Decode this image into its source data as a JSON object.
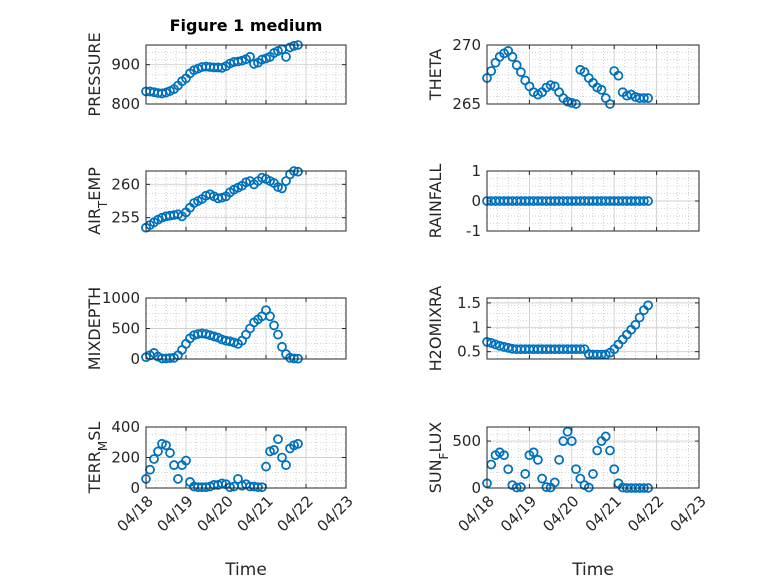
{
  "figure": {
    "title": "Figure 1 medium"
  },
  "colors": {
    "marker": "#0072BD",
    "axis": "#262626",
    "grid": "#b0b0b0",
    "background": "#ffffff"
  },
  "chart_data": [
    {
      "type": "scatter",
      "id": "pressure",
      "title": "Figure 1 medium",
      "ylabel": "PRESSURE",
      "ylabel_sub": [],
      "xlabel": "",
      "xlim_days": [
        0,
        5
      ],
      "ylim": [
        800,
        950
      ],
      "yticks": [
        800,
        900
      ],
      "xticks": [
        "04/18",
        "04/19",
        "04/20",
        "04/21",
        "04/22",
        "04/23"
      ],
      "show_xticklabels": false,
      "grid": true,
      "x": [
        0.0,
        0.1,
        0.2,
        0.3,
        0.4,
        0.5,
        0.6,
        0.7,
        0.8,
        0.9,
        1.0,
        1.1,
        1.2,
        1.3,
        1.4,
        1.5,
        1.6,
        1.7,
        1.8,
        1.9,
        2.0,
        2.1,
        2.2,
        2.3,
        2.4,
        2.5,
        2.6,
        2.7,
        2.8,
        2.9,
        3.0,
        3.1,
        3.2,
        3.3,
        3.4,
        3.5,
        3.6,
        3.7,
        3.8
      ],
      "y": [
        832,
        832,
        830,
        828,
        827,
        829,
        833,
        838,
        847,
        858,
        865,
        878,
        886,
        890,
        894,
        895,
        894,
        893,
        893,
        892,
        896,
        903,
        907,
        908,
        910,
        914,
        920,
        902,
        905,
        913,
        916,
        920,
        930,
        935,
        939,
        920,
        944,
        948,
        950
      ]
    },
    {
      "type": "scatter",
      "id": "theta",
      "ylabel": "THETA",
      "ylabel_sub": [],
      "xlabel": "",
      "xlim_days": [
        0,
        5
      ],
      "ylim": [
        265,
        270
      ],
      "yticks": [
        265,
        270
      ],
      "xticks": [
        "04/18",
        "04/19",
        "04/20",
        "04/21",
        "04/22",
        "04/23"
      ],
      "show_xticklabels": false,
      "grid": true,
      "x": [
        0.0,
        0.1,
        0.2,
        0.3,
        0.4,
        0.5,
        0.6,
        0.7,
        0.8,
        0.9,
        1.0,
        1.1,
        1.2,
        1.3,
        1.4,
        1.5,
        1.6,
        1.7,
        1.8,
        1.9,
        2.0,
        2.1,
        2.2,
        2.3,
        2.4,
        2.5,
        2.6,
        2.7,
        2.8,
        2.9,
        3.0,
        3.1,
        3.2,
        3.3,
        3.4,
        3.5,
        3.6,
        3.7,
        3.8
      ],
      "y": [
        267.2,
        267.8,
        268.5,
        269.0,
        269.3,
        269.5,
        269.0,
        268.3,
        267.7,
        267.0,
        266.5,
        266.0,
        265.8,
        266.0,
        266.4,
        266.6,
        266.5,
        266.0,
        265.5,
        265.2,
        265.1,
        265.0,
        267.9,
        267.7,
        267.2,
        266.8,
        266.4,
        266.2,
        265.5,
        265.0,
        267.8,
        267.4,
        266.0,
        265.7,
        265.8,
        265.6,
        265.5,
        265.5,
        265.5
      ]
    },
    {
      "type": "scatter",
      "id": "air_temp",
      "ylabel": "AIR",
      "ylabel_sub": [
        "T",
        "EMP"
      ],
      "xlabel": "",
      "xlim_days": [
        0,
        5
      ],
      "ylim": [
        253,
        262
      ],
      "yticks": [
        255,
        260
      ],
      "xticks": [
        "04/18",
        "04/19",
        "04/20",
        "04/21",
        "04/22",
        "04/23"
      ],
      "show_xticklabels": false,
      "grid": true,
      "x": [
        0.0,
        0.1,
        0.2,
        0.3,
        0.4,
        0.5,
        0.6,
        0.7,
        0.8,
        0.9,
        1.0,
        1.1,
        1.2,
        1.3,
        1.4,
        1.5,
        1.6,
        1.7,
        1.8,
        1.9,
        2.0,
        2.1,
        2.2,
        2.3,
        2.4,
        2.5,
        2.6,
        2.7,
        2.8,
        2.9,
        3.0,
        3.1,
        3.2,
        3.3,
        3.4,
        3.5,
        3.6,
        3.7,
        3.8
      ],
      "y": [
        253.5,
        253.9,
        254.3,
        254.7,
        255.0,
        255.2,
        255.3,
        255.4,
        255.5,
        255.2,
        255.8,
        256.5,
        257.2,
        257.5,
        257.8,
        258.3,
        258.5,
        258.2,
        257.9,
        258.0,
        258.2,
        258.8,
        259.2,
        259.5,
        259.8,
        260.3,
        260.5,
        260.0,
        260.5,
        261.0,
        260.8,
        260.5,
        260.2,
        259.6,
        259.4,
        260.5,
        261.5,
        262.0,
        261.9
      ]
    },
    {
      "type": "scatter",
      "id": "rainfall",
      "ylabel": "RAINFALL",
      "ylabel_sub": [],
      "xlabel": "",
      "xlim_days": [
        0,
        5
      ],
      "ylim": [
        -1,
        1
      ],
      "yticks": [
        -1,
        0,
        1
      ],
      "xticks": [
        "04/18",
        "04/19",
        "04/20",
        "04/21",
        "04/22",
        "04/23"
      ],
      "show_xticklabels": false,
      "grid": true,
      "x": [
        0.0,
        0.1,
        0.2,
        0.3,
        0.4,
        0.5,
        0.6,
        0.7,
        0.8,
        0.9,
        1.0,
        1.1,
        1.2,
        1.3,
        1.4,
        1.5,
        1.6,
        1.7,
        1.8,
        1.9,
        2.0,
        2.1,
        2.2,
        2.3,
        2.4,
        2.5,
        2.6,
        2.7,
        2.8,
        2.9,
        3.0,
        3.1,
        3.2,
        3.3,
        3.4,
        3.5,
        3.6,
        3.7,
        3.8
      ],
      "y": [
        0,
        0,
        0,
        0,
        0,
        0,
        0,
        0,
        0,
        0,
        0,
        0,
        0,
        0,
        0,
        0,
        0,
        0,
        0,
        0,
        0,
        0,
        0,
        0,
        0,
        0,
        0,
        0,
        0,
        0,
        0,
        0,
        0,
        0,
        0,
        0,
        0,
        0,
        0
      ]
    },
    {
      "type": "scatter",
      "id": "mixdepth",
      "ylabel": "MIXDEPTH",
      "ylabel_sub": [],
      "xlabel": "",
      "xlim_days": [
        0,
        5
      ],
      "ylim": [
        0,
        1000
      ],
      "yticks": [
        0,
        500,
        1000
      ],
      "xticks": [
        "04/18",
        "04/19",
        "04/20",
        "04/21",
        "04/22",
        "04/23"
      ],
      "show_xticklabels": false,
      "grid": true,
      "x": [
        0.0,
        0.1,
        0.2,
        0.3,
        0.4,
        0.5,
        0.6,
        0.7,
        0.8,
        0.9,
        1.0,
        1.1,
        1.2,
        1.3,
        1.4,
        1.5,
        1.6,
        1.7,
        1.8,
        1.9,
        2.0,
        2.1,
        2.2,
        2.3,
        2.4,
        2.5,
        2.6,
        2.7,
        2.8,
        2.9,
        3.0,
        3.1,
        3.2,
        3.3,
        3.4,
        3.5,
        3.6,
        3.7,
        3.8
      ],
      "y": [
        30,
        60,
        100,
        40,
        10,
        10,
        15,
        20,
        60,
        150,
        250,
        340,
        390,
        410,
        420,
        410,
        390,
        370,
        350,
        320,
        300,
        290,
        270,
        250,
        300,
        400,
        500,
        600,
        650,
        700,
        800,
        700,
        550,
        400,
        200,
        80,
        20,
        10,
        5
      ]
    },
    {
      "type": "scatter",
      "id": "h2omixra",
      "ylabel": "H2OMIXRA",
      "ylabel_sub": [],
      "xlabel": "",
      "xlim_days": [
        0,
        5
      ],
      "ylim": [
        0.35,
        1.6
      ],
      "yticks": [
        0.5,
        1,
        1.5
      ],
      "xticks": [
        "04/18",
        "04/19",
        "04/20",
        "04/21",
        "04/22",
        "04/23"
      ],
      "show_xticklabels": false,
      "grid": true,
      "x": [
        0.0,
        0.1,
        0.2,
        0.3,
        0.4,
        0.5,
        0.6,
        0.7,
        0.8,
        0.9,
        1.0,
        1.1,
        1.2,
        1.3,
        1.4,
        1.5,
        1.6,
        1.7,
        1.8,
        1.9,
        2.0,
        2.1,
        2.2,
        2.3,
        2.4,
        2.5,
        2.6,
        2.7,
        2.8,
        2.9,
        3.0,
        3.1,
        3.2,
        3.3,
        3.4,
        3.5,
        3.6,
        3.7,
        3.8
      ],
      "y": [
        0.7,
        0.68,
        0.65,
        0.62,
        0.6,
        0.58,
        0.56,
        0.55,
        0.55,
        0.55,
        0.55,
        0.55,
        0.55,
        0.55,
        0.55,
        0.55,
        0.55,
        0.55,
        0.55,
        0.55,
        0.55,
        0.55,
        0.55,
        0.55,
        0.45,
        0.44,
        0.44,
        0.44,
        0.44,
        0.48,
        0.55,
        0.65,
        0.75,
        0.85,
        0.95,
        1.05,
        1.2,
        1.35,
        1.45
      ]
    },
    {
      "type": "scatter",
      "id": "terr_msl",
      "ylabel": "TERR",
      "ylabel_sub": [
        "M",
        "SL"
      ],
      "xlabel": "Time",
      "xlim_days": [
        0,
        5
      ],
      "ylim": [
        0,
        400
      ],
      "yticks": [
        0,
        200,
        400
      ],
      "xticks": [
        "04/18",
        "04/19",
        "04/20",
        "04/21",
        "04/22",
        "04/23"
      ],
      "show_xticklabels": true,
      "grid": true,
      "x": [
        0.0,
        0.1,
        0.2,
        0.3,
        0.4,
        0.5,
        0.6,
        0.7,
        0.8,
        0.9,
        1.0,
        1.1,
        1.2,
        1.3,
        1.4,
        1.5,
        1.6,
        1.7,
        1.8,
        1.9,
        2.0,
        2.1,
        2.2,
        2.3,
        2.4,
        2.5,
        2.6,
        2.7,
        2.8,
        2.9,
        3.0,
        3.1,
        3.2,
        3.3,
        3.4,
        3.5,
        3.6,
        3.7,
        3.8
      ],
      "y": [
        60,
        120,
        190,
        240,
        290,
        280,
        230,
        150,
        60,
        150,
        180,
        40,
        10,
        5,
        5,
        5,
        10,
        20,
        20,
        30,
        25,
        5,
        10,
        60,
        15,
        25,
        10,
        10,
        5,
        5,
        140,
        240,
        250,
        320,
        200,
        150,
        260,
        280,
        290
      ]
    },
    {
      "type": "scatter",
      "id": "sun_flux",
      "ylabel": "SUN",
      "ylabel_sub": [
        "F",
        "LUX"
      ],
      "xlabel": "Time",
      "xlim_days": [
        0,
        5
      ],
      "ylim": [
        0,
        650
      ],
      "yticks": [
        0,
        500
      ],
      "xticks": [
        "04/18",
        "04/19",
        "04/20",
        "04/21",
        "04/22",
        "04/23"
      ],
      "show_xticklabels": true,
      "grid": true,
      "x": [
        0.0,
        0.1,
        0.2,
        0.3,
        0.4,
        0.5,
        0.6,
        0.7,
        0.8,
        0.9,
        1.0,
        1.1,
        1.2,
        1.3,
        1.4,
        1.5,
        1.6,
        1.7,
        1.8,
        1.9,
        2.0,
        2.1,
        2.2,
        2.3,
        2.4,
        2.5,
        2.6,
        2.7,
        2.8,
        2.9,
        3.0,
        3.1,
        3.2,
        3.3,
        3.4,
        3.5,
        3.6,
        3.7,
        3.8
      ],
      "y": [
        50,
        250,
        350,
        380,
        350,
        200,
        30,
        5,
        10,
        150,
        350,
        380,
        300,
        100,
        10,
        5,
        60,
        300,
        500,
        600,
        500,
        200,
        100,
        30,
        5,
        150,
        400,
        500,
        550,
        400,
        200,
        50,
        5,
        0,
        0,
        0,
        0,
        0,
        0
      ]
    }
  ]
}
